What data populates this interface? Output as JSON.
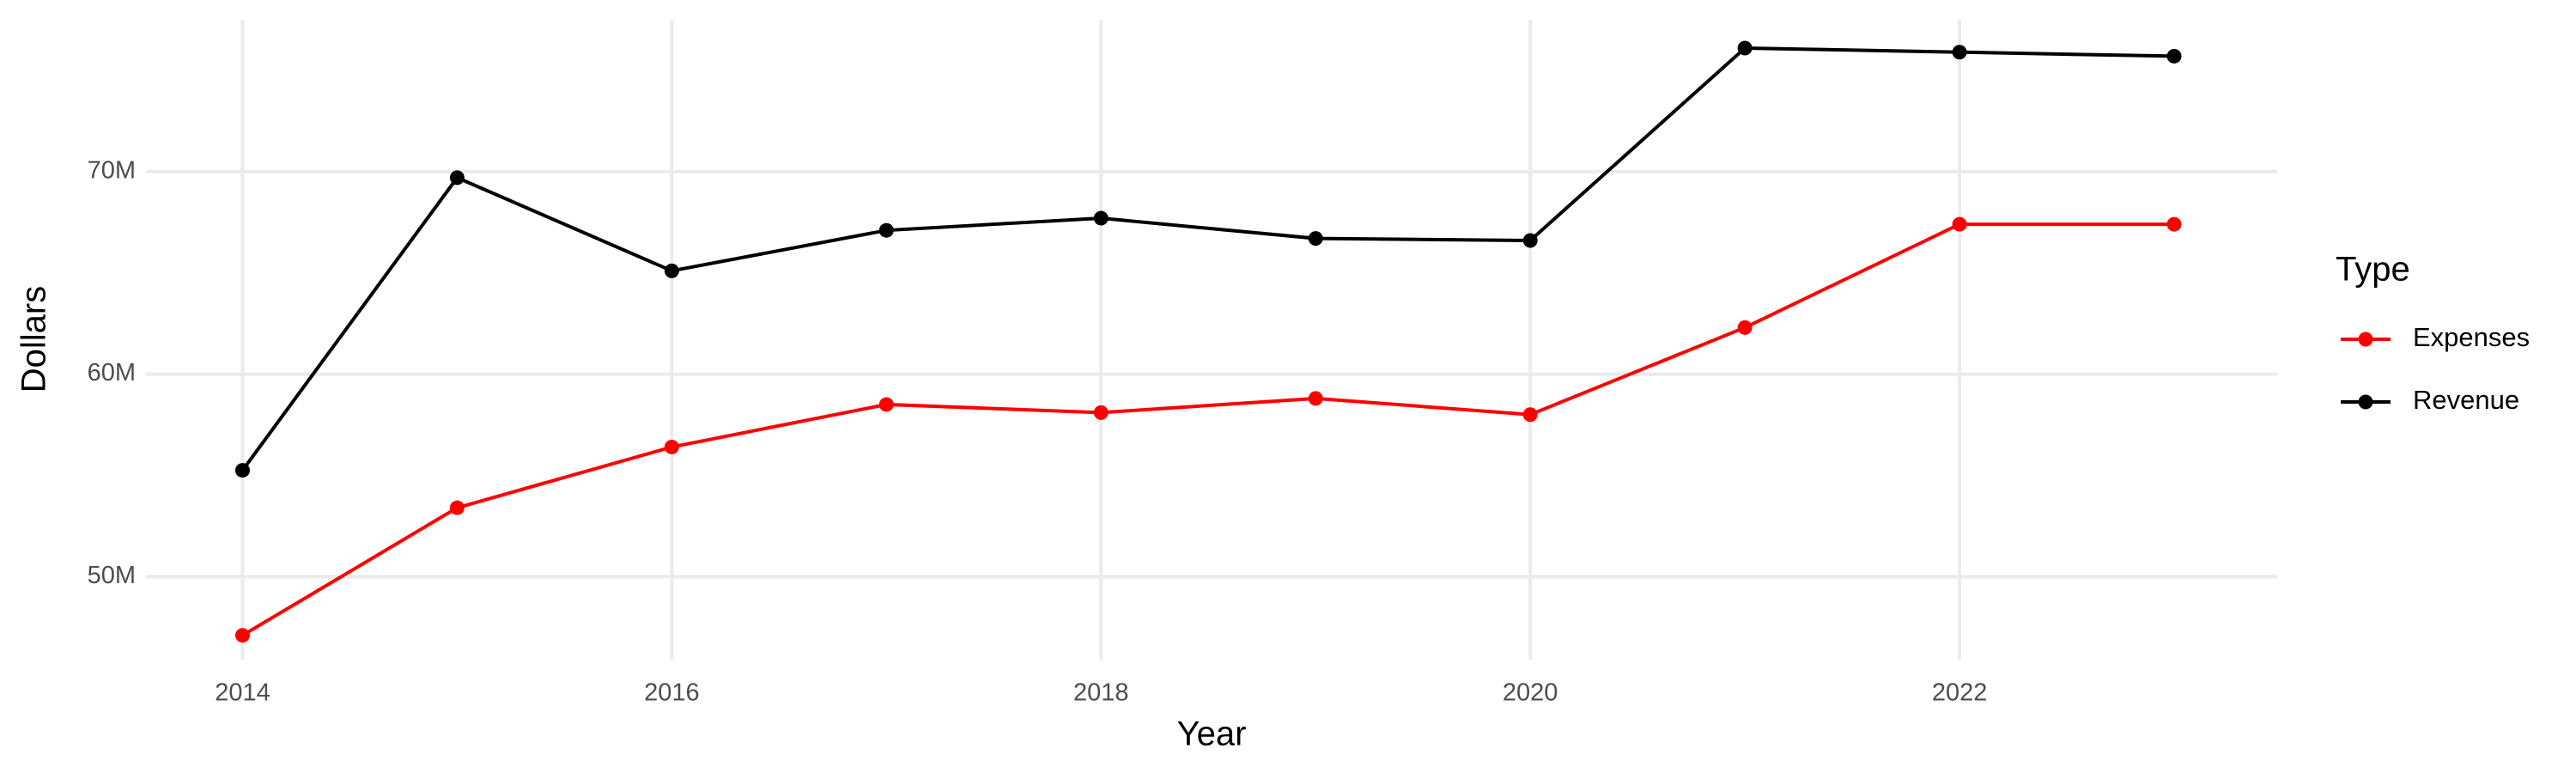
{
  "chart_data": {
    "type": "line",
    "x_label": "Year",
    "y_label": "Dollars",
    "legend_title": "Type",
    "x": [
      2014,
      2015,
      2016,
      2017,
      2018,
      2019,
      2020,
      2021,
      2022,
      2023
    ],
    "series": [
      {
        "name": "Expenses",
        "color": "#ff0000",
        "values": [
          47100000,
          53400000,
          56400000,
          58500000,
          58100000,
          58800000,
          58000000,
          62300000,
          67400000,
          67400000
        ]
      },
      {
        "name": "Revenue",
        "color": "#000000",
        "values": [
          55250000,
          69700000,
          65100000,
          67100000,
          67700000,
          66700000,
          66600000,
          76100000,
          75900000,
          75700000
        ]
      }
    ],
    "xlim": [
      2013.55,
      2023.48
    ],
    "xticks": [
      2014,
      2016,
      2018,
      2020,
      2022
    ],
    "ylim": [
      45900000,
      77500000
    ],
    "yticks": [
      {
        "value": 50000000,
        "label": "50M"
      },
      {
        "value": 60000000,
        "label": "60M"
      },
      {
        "value": 70000000,
        "label": "70M"
      }
    ],
    "grid": true,
    "legend": "right"
  }
}
